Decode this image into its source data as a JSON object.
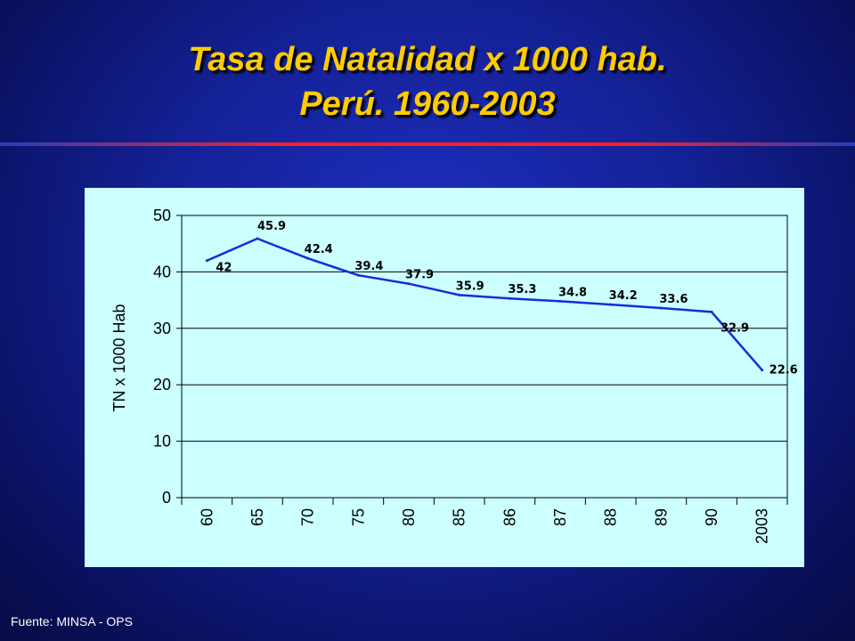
{
  "title": {
    "line1": "Tasa de Natalidad x 1000 hab.",
    "line2": "Perú. 1960-2003"
  },
  "source": "Fuente: MINSA - OPS",
  "colors": {
    "title": "#ffcc00",
    "line": "#1a2bd6",
    "plot_background": "#ccffff",
    "accent_rule": "#ff2020"
  },
  "chart_data": {
    "type": "line",
    "categories": [
      "60",
      "65",
      "70",
      "75",
      "80",
      "85",
      "86",
      "87",
      "88",
      "89",
      "90",
      "2003"
    ],
    "values": [
      42,
      45.9,
      42.4,
      39.4,
      37.9,
      35.9,
      35.3,
      34.8,
      34.2,
      33.6,
      32.9,
      22.6
    ],
    "data_labels": [
      "42",
      "45.9",
      "42.4",
      "39.4",
      "37.9",
      "35.9",
      "35.3",
      "34.8",
      "34.2",
      "33.6",
      "32.9",
      "22.6"
    ],
    "ylabel": "TN x 1000 Hab",
    "xlabel": "",
    "ylim": [
      0,
      50
    ],
    "yticks": [
      "0",
      "10",
      "20",
      "30",
      "40",
      "50"
    ],
    "grid": true,
    "legend": "none"
  }
}
